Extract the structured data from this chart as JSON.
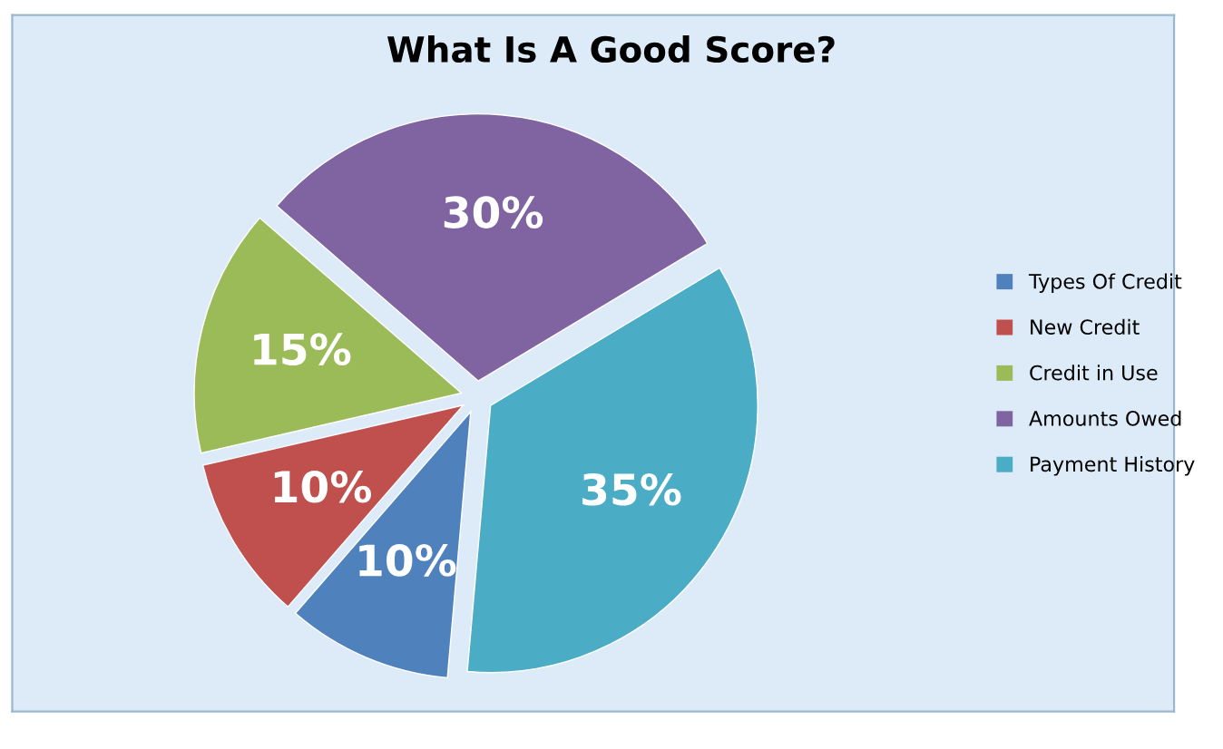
{
  "chart_data": {
    "type": "pie",
    "title": "What Is A Good Score?",
    "categories": [
      "Types Of Credit",
      "New Credit",
      "Credit in Use",
      "Amounts Owed",
      "Payment History"
    ],
    "values": [
      10,
      10,
      15,
      30,
      35
    ],
    "value_labels": [
      "10%",
      "10%",
      "15%",
      "30%",
      "35%"
    ],
    "colors": [
      "#4f81bd",
      "#c0504d",
      "#9bbb59",
      "#8064a2",
      "#4bacc6"
    ],
    "legend": "right"
  }
}
